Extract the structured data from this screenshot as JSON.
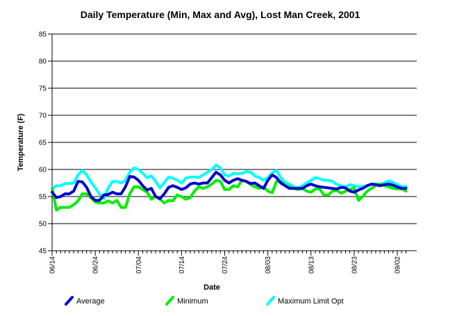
{
  "chart_data": {
    "type": "line",
    "title": "Daily Temperature (Min, Max and Avg), Lost Man Creek, 2001",
    "xlabel": "Date",
    "ylabel": "Temperature (F)",
    "ylim": [
      45,
      85
    ],
    "yticks": [
      "45",
      "50",
      "55",
      "60",
      "65",
      "70",
      "75",
      "80",
      "85"
    ],
    "xtick_labels": [
      "06/14",
      "06/24",
      "07/04",
      "07/14",
      "07/24",
      "08/03",
      "08/13",
      "08/23",
      "09/02"
    ],
    "xtick_day_index": [
      0,
      10,
      20,
      30,
      40,
      50,
      60,
      70,
      80
    ],
    "x_day_count": 83,
    "grid": "horizontal",
    "legend_position": "bottom",
    "series": [
      {
        "name": "Average",
        "color": "#0000cc",
        "values": [
          55.8,
          54.8,
          55.0,
          55.5,
          55.5,
          56.0,
          57.8,
          57.7,
          56.7,
          55.0,
          54.3,
          54.3,
          55.3,
          55.4,
          55.8,
          55.5,
          55.5,
          56.8,
          58.7,
          58.6,
          58.0,
          57.0,
          56.2,
          56.5,
          55.0,
          54.6,
          55.5,
          56.7,
          57.0,
          56.7,
          56.3,
          56.6,
          57.3,
          57.5,
          57.3,
          57.5,
          57.5,
          58.5,
          59.5,
          59.0,
          58.0,
          57.5,
          58.0,
          58.3,
          58.0,
          57.8,
          57.4,
          57.5,
          57.0,
          56.5,
          58.0,
          59.0,
          58.5,
          57.5,
          57.0,
          56.5,
          56.5,
          56.5,
          56.5,
          57.0,
          57.3,
          57.0,
          56.8,
          56.7,
          56.6,
          56.5,
          56.4,
          56.7,
          56.6,
          56.0,
          55.8,
          56.2,
          56.5,
          57.0,
          57.3,
          57.2,
          57.0,
          57.2,
          57.3,
          57.1,
          56.8,
          56.5,
          56.5
        ]
      },
      {
        "name": "Minimum",
        "color": "#00ee00",
        "values": [
          56.5,
          52.5,
          53.0,
          53.0,
          53.0,
          53.5,
          54.2,
          55.5,
          55.5,
          54.8,
          54.0,
          53.8,
          53.8,
          54.2,
          53.8,
          54.3,
          53.0,
          53.0,
          55.5,
          56.8,
          56.8,
          56.3,
          55.8,
          54.5,
          55.0,
          54.5,
          53.8,
          54.3,
          54.2,
          55.3,
          55.0,
          54.5,
          54.8,
          56.0,
          56.8,
          56.5,
          56.8,
          57.3,
          58.0,
          57.8,
          56.3,
          56.3,
          57.0,
          56.8,
          58.0,
          57.8,
          57.2,
          56.8,
          56.5,
          56.8,
          56.0,
          55.7,
          57.8,
          57.8,
          57.0,
          56.8,
          56.5,
          56.3,
          56.5,
          56.0,
          55.8,
          56.4,
          56.4,
          55.3,
          55.3,
          56.0,
          56.1,
          55.6,
          56.0,
          56.3,
          56.6,
          54.3,
          55.0,
          56.0,
          56.5,
          57.0,
          57.3,
          57.0,
          56.8,
          56.5,
          56.4,
          56.4,
          56.0
        ]
      },
      {
        "name": "Maximum Limit Opt",
        "color": "#00ffff",
        "values": [
          56.5,
          57.0,
          57.0,
          57.4,
          57.4,
          57.5,
          59.0,
          59.8,
          59.0,
          57.7,
          56.6,
          55.5,
          54.6,
          56.6,
          57.8,
          57.8,
          57.5,
          58.0,
          59.5,
          60.3,
          60.0,
          59.3,
          58.5,
          58.8,
          57.8,
          56.6,
          57.6,
          58.6,
          58.4,
          58.0,
          57.5,
          58.4,
          58.6,
          58.6,
          58.5,
          59.0,
          59.5,
          60.0,
          60.8,
          60.3,
          59.0,
          58.8,
          59.3,
          59.2,
          59.3,
          59.6,
          59.5,
          58.8,
          58.5,
          58.0,
          58.5,
          59.4,
          59.8,
          58.5,
          57.6,
          57.3,
          56.8,
          56.6,
          57.0,
          57.5,
          58.0,
          58.5,
          58.3,
          58.0,
          58.0,
          57.8,
          57.2,
          57.0,
          56.8,
          57.2,
          57.0,
          56.8,
          56.9,
          57.0,
          57.3,
          57.3,
          57.3,
          57.5,
          57.9,
          57.6,
          57.2,
          56.8,
          56.9
        ]
      }
    ]
  }
}
